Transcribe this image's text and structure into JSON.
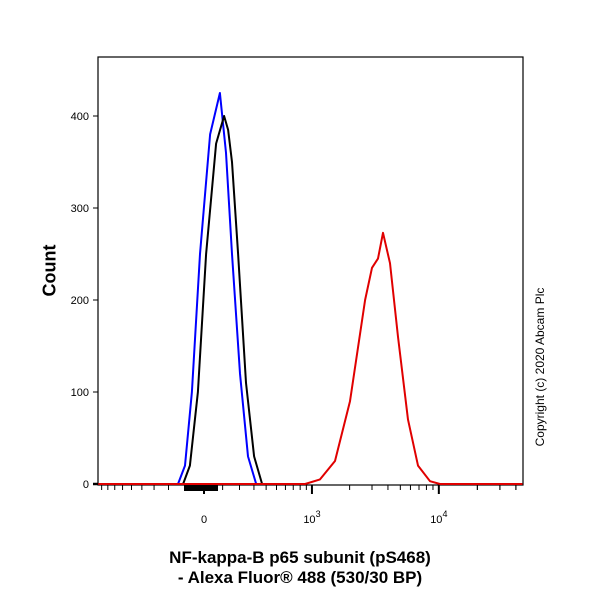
{
  "chart_data": {
    "type": "line",
    "xlabel": [
      "NF-kappa-B p65 subunit (pS468)",
      "- Alexa Fluor® 488 (530/30 BP)"
    ],
    "ylabel": "Count",
    "x_scale": "biexponential",
    "xlim": [
      -960,
      45000
    ],
    "ylim": [
      0,
      465
    ],
    "x_ticks": [
      {
        "value": 0,
        "label": "0"
      },
      {
        "value": 1000,
        "label": "10",
        "exp": "3"
      },
      {
        "value": 10000,
        "label": "10",
        "exp": "4"
      }
    ],
    "y_ticks": [
      0,
      100,
      200,
      300,
      400
    ],
    "grid": false,
    "series": [
      {
        "color": "#0000ff",
        "points": [
          [
            -142,
            0
          ],
          [
            -102,
            20
          ],
          [
            -64,
            100
          ],
          [
            -21,
            250
          ],
          [
            32,
            380
          ],
          [
            85,
            425
          ],
          [
            119,
            360
          ],
          [
            154,
            250
          ],
          [
            203,
            120
          ],
          [
            257,
            30
          ],
          [
            317,
            0
          ]
        ]
      },
      {
        "color": "#000000",
        "points": [
          [
            -113,
            0
          ],
          [
            -75,
            20
          ],
          [
            -32,
            100
          ],
          [
            11,
            250
          ],
          [
            64,
            370
          ],
          [
            108,
            400
          ],
          [
            131,
            385
          ],
          [
            154,
            350
          ],
          [
            191,
            250
          ],
          [
            243,
            110
          ],
          [
            301,
            30
          ],
          [
            365,
            0
          ]
        ]
      },
      {
        "color": "#e00000",
        "points": [
          [
            -960,
            0
          ],
          [
            879,
            0
          ],
          [
            1161,
            5
          ],
          [
            1531,
            25
          ],
          [
            2013,
            90
          ],
          [
            2646,
            200
          ],
          [
            3000,
            235
          ],
          [
            3343,
            245
          ],
          [
            3657,
            273
          ],
          [
            4150,
            240
          ],
          [
            4795,
            160
          ],
          [
            5740,
            70
          ],
          [
            6877,
            20
          ],
          [
            8530,
            3
          ],
          [
            10220,
            0
          ],
          [
            45000,
            0
          ]
        ]
      }
    ]
  },
  "copyright": "Copyright (c) 2020 Abcam Plc"
}
